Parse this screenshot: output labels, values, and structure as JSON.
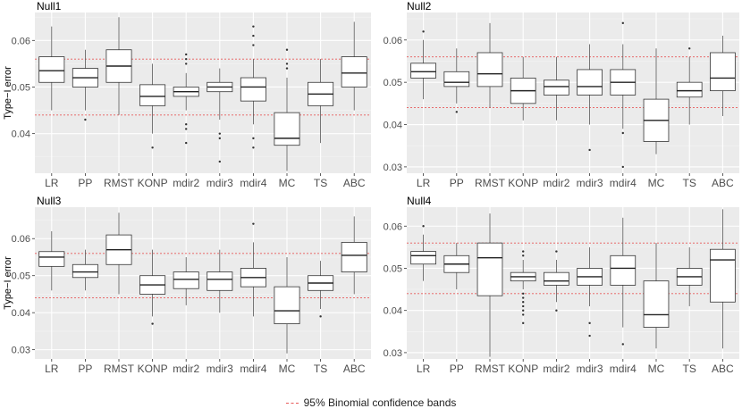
{
  "chart_data": [
    {
      "type": "boxplot",
      "title": "Null1",
      "ylabel": "Type−I error",
      "ylim": [
        0.0315,
        0.066
      ],
      "yticks": [
        0.04,
        0.05,
        0.06
      ],
      "ytick_labels": [
        "0.04",
        "0.05",
        "0.06"
      ],
      "bands": [
        0.044,
        0.056
      ],
      "categories": [
        "LR",
        "PP",
        "RMST",
        "KONP",
        "mdir2",
        "mdir3",
        "mdir4",
        "MC",
        "TS",
        "ABC"
      ],
      "boxes": [
        {
          "low": 0.045,
          "q1": 0.051,
          "median": 0.0535,
          "q3": 0.0565,
          "high": 0.063,
          "outliers": []
        },
        {
          "low": 0.045,
          "q1": 0.05,
          "median": 0.052,
          "q3": 0.054,
          "high": 0.058,
          "outliers": [
            0.043
          ]
        },
        {
          "low": 0.044,
          "q1": 0.051,
          "median": 0.0545,
          "q3": 0.058,
          "high": 0.065,
          "outliers": []
        },
        {
          "low": 0.04,
          "q1": 0.046,
          "median": 0.048,
          "q3": 0.0505,
          "high": 0.055,
          "outliers": [
            0.037
          ]
        },
        {
          "low": 0.045,
          "q1": 0.048,
          "median": 0.049,
          "q3": 0.05,
          "high": 0.053,
          "outliers": [
            0.057,
            0.056,
            0.055,
            0.042,
            0.041,
            0.038
          ]
        },
        {
          "low": 0.043,
          "q1": 0.049,
          "median": 0.05,
          "q3": 0.051,
          "high": 0.054,
          "outliers": [
            0.04,
            0.039,
            0.034
          ]
        },
        {
          "low": 0.042,
          "q1": 0.047,
          "median": 0.05,
          "q3": 0.052,
          "high": 0.056,
          "outliers": [
            0.063,
            0.061,
            0.059,
            0.039,
            0.037
          ]
        },
        {
          "low": 0.032,
          "q1": 0.0375,
          "median": 0.039,
          "q3": 0.0445,
          "high": 0.052,
          "outliers": [
            0.058,
            0.055,
            0.054
          ]
        },
        {
          "low": 0.038,
          "q1": 0.046,
          "median": 0.0485,
          "q3": 0.051,
          "high": 0.056,
          "outliers": []
        },
        {
          "low": 0.045,
          "q1": 0.05,
          "median": 0.053,
          "q3": 0.0565,
          "high": 0.064,
          "outliers": []
        }
      ]
    },
    {
      "type": "boxplot",
      "title": "Null2",
      "ylabel": "",
      "ylim": [
        0.0285,
        0.0665
      ],
      "yticks": [
        0.03,
        0.04,
        0.05,
        0.06
      ],
      "ytick_labels": [
        "0.03",
        "0.04",
        "0.05",
        "0.06"
      ],
      "bands": [
        0.044,
        0.056
      ],
      "categories": [
        "LR",
        "PP",
        "RMST",
        "KONP",
        "mdir2",
        "mdir3",
        "mdir4",
        "MC",
        "TS",
        "ABC"
      ],
      "boxes": [
        {
          "low": 0.046,
          "q1": 0.051,
          "median": 0.0525,
          "q3": 0.0545,
          "high": 0.06,
          "outliers": [
            0.062
          ]
        },
        {
          "low": 0.045,
          "q1": 0.049,
          "median": 0.05,
          "q3": 0.0525,
          "high": 0.058,
          "outliers": [
            0.043
          ]
        },
        {
          "low": 0.044,
          "q1": 0.049,
          "median": 0.052,
          "q3": 0.057,
          "high": 0.064,
          "outliers": []
        },
        {
          "low": 0.041,
          "q1": 0.045,
          "median": 0.048,
          "q3": 0.051,
          "high": 0.056,
          "outliers": []
        },
        {
          "low": 0.041,
          "q1": 0.047,
          "median": 0.049,
          "q3": 0.0505,
          "high": 0.056,
          "outliers": []
        },
        {
          "low": 0.04,
          "q1": 0.047,
          "median": 0.049,
          "q3": 0.053,
          "high": 0.059,
          "outliers": [
            0.034
          ]
        },
        {
          "low": 0.039,
          "q1": 0.047,
          "median": 0.05,
          "q3": 0.053,
          "high": 0.059,
          "outliers": [
            0.064,
            0.038,
            0.03
          ]
        },
        {
          "low": 0.033,
          "q1": 0.036,
          "median": 0.041,
          "q3": 0.046,
          "high": 0.058,
          "outliers": []
        },
        {
          "low": 0.04,
          "q1": 0.0465,
          "median": 0.048,
          "q3": 0.05,
          "high": 0.056,
          "outliers": [
            0.058
          ]
        },
        {
          "low": 0.042,
          "q1": 0.048,
          "median": 0.051,
          "q3": 0.057,
          "high": 0.061,
          "outliers": []
        }
      ]
    },
    {
      "type": "boxplot",
      "title": "Null3",
      "ylabel": "Type−I error",
      "ylim": [
        0.0275,
        0.0685
      ],
      "yticks": [
        0.03,
        0.04,
        0.05,
        0.06
      ],
      "ytick_labels": [
        "0.03",
        "0.04",
        "0.05",
        "0.06"
      ],
      "bands": [
        0.044,
        0.056
      ],
      "categories": [
        "LR",
        "PP",
        "RMST",
        "KONP",
        "mdir2",
        "mdir3",
        "mdir4",
        "MC",
        "TS",
        "ABC"
      ],
      "boxes": [
        {
          "low": 0.046,
          "q1": 0.0525,
          "median": 0.055,
          "q3": 0.0565,
          "high": 0.062,
          "outliers": []
        },
        {
          "low": 0.046,
          "q1": 0.0495,
          "median": 0.051,
          "q3": 0.053,
          "high": 0.057,
          "outliers": []
        },
        {
          "low": 0.045,
          "q1": 0.053,
          "median": 0.057,
          "q3": 0.061,
          "high": 0.067,
          "outliers": []
        },
        {
          "low": 0.039,
          "q1": 0.045,
          "median": 0.0475,
          "q3": 0.05,
          "high": 0.057,
          "outliers": [
            0.037
          ]
        },
        {
          "low": 0.042,
          "q1": 0.0465,
          "median": 0.049,
          "q3": 0.051,
          "high": 0.055,
          "outliers": []
        },
        {
          "low": 0.04,
          "q1": 0.046,
          "median": 0.049,
          "q3": 0.051,
          "high": 0.057,
          "outliers": []
        },
        {
          "low": 0.039,
          "q1": 0.047,
          "median": 0.0495,
          "q3": 0.052,
          "high": 0.059,
          "outliers": [
            0.064
          ]
        },
        {
          "low": 0.029,
          "q1": 0.037,
          "median": 0.0405,
          "q3": 0.047,
          "high": 0.055,
          "outliers": []
        },
        {
          "low": 0.041,
          "q1": 0.046,
          "median": 0.048,
          "q3": 0.05,
          "high": 0.054,
          "outliers": [
            0.039
          ]
        },
        {
          "low": 0.045,
          "q1": 0.051,
          "median": 0.0555,
          "q3": 0.059,
          "high": 0.066,
          "outliers": []
        }
      ]
    },
    {
      "type": "boxplot",
      "title": "Null4",
      "ylabel": "",
      "ylim": [
        0.0285,
        0.0645
      ],
      "yticks": [
        0.03,
        0.04,
        0.05,
        0.06
      ],
      "ytick_labels": [
        "0.03",
        "0.04",
        "0.05",
        "0.06"
      ],
      "bands": [
        0.044,
        0.056
      ],
      "categories": [
        "LR",
        "PP",
        "RMST",
        "KONP",
        "mdir2",
        "mdir3",
        "mdir4",
        "MC",
        "TS",
        "ABC"
      ],
      "boxes": [
        {
          "low": 0.047,
          "q1": 0.051,
          "median": 0.053,
          "q3": 0.054,
          "high": 0.058,
          "outliers": [
            0.06
          ]
        },
        {
          "low": 0.045,
          "q1": 0.049,
          "median": 0.051,
          "q3": 0.053,
          "high": 0.056,
          "outliers": []
        },
        {
          "low": 0.029,
          "q1": 0.0435,
          "median": 0.0525,
          "q3": 0.056,
          "high": 0.063,
          "outliers": []
        },
        {
          "low": 0.045,
          "q1": 0.047,
          "median": 0.048,
          "q3": 0.049,
          "high": 0.052,
          "outliers": [
            0.054,
            0.053,
            0.044,
            0.043,
            0.042,
            0.041,
            0.04,
            0.039,
            0.037
          ]
        },
        {
          "low": 0.042,
          "q1": 0.046,
          "median": 0.047,
          "q3": 0.049,
          "high": 0.052,
          "outliers": [
            0.054,
            0.04
          ]
        },
        {
          "low": 0.041,
          "q1": 0.046,
          "median": 0.048,
          "q3": 0.05,
          "high": 0.055,
          "outliers": [
            0.037,
            0.034
          ]
        },
        {
          "low": 0.036,
          "q1": 0.046,
          "median": 0.05,
          "q3": 0.053,
          "high": 0.062,
          "outliers": [
            0.032
          ]
        },
        {
          "low": 0.031,
          "q1": 0.036,
          "median": 0.039,
          "q3": 0.047,
          "high": 0.056,
          "outliers": []
        },
        {
          "low": 0.041,
          "q1": 0.046,
          "median": 0.048,
          "q3": 0.05,
          "high": 0.055,
          "outliers": []
        },
        {
          "low": 0.031,
          "q1": 0.042,
          "median": 0.052,
          "q3": 0.0545,
          "high": 0.064,
          "outliers": []
        }
      ]
    }
  ],
  "legend": {
    "label": "95% Binomial confidence bands",
    "color": "#e8595a"
  },
  "colors": {
    "panel_bg": "#ebebeb",
    "grid_major": "#ffffff",
    "box_fill": "#ffffff",
    "box_stroke": "#333333",
    "text": "#4d4d4d"
  }
}
